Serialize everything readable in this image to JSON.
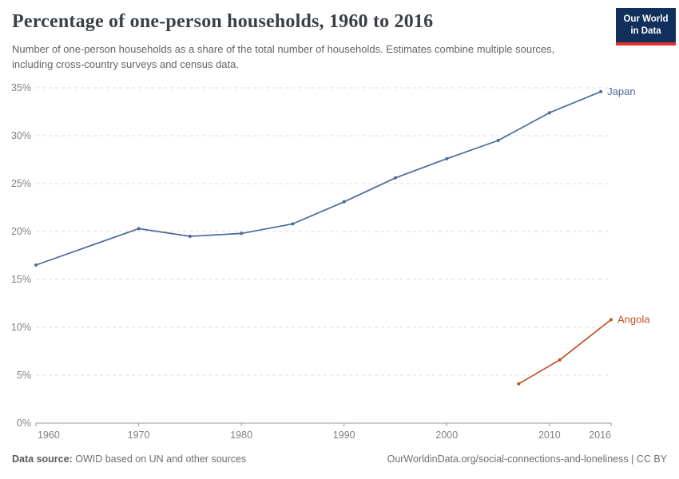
{
  "header": {
    "title": "Percentage of one-person households, 1960 to 2016",
    "subtitle": "Number of one-person households as a share of the total number of households. Estimates combine multiple sources, including cross-country surveys and census data.",
    "logo": {
      "line1": "Our World",
      "line2": "in Data",
      "bg_color": "#12305e",
      "accent_color": "#e0352f"
    }
  },
  "chart_data": {
    "type": "line",
    "title": "Percentage of one-person households, 1960 to 2016",
    "xlabel": "",
    "ylabel": "",
    "xlim": [
      1960,
      2016
    ],
    "ylim": [
      0,
      35
    ],
    "xticks": [
      1960,
      1970,
      1980,
      1990,
      2000,
      2010,
      2016
    ],
    "yticks": [
      0,
      5,
      10,
      15,
      20,
      25,
      30,
      35
    ],
    "ytick_format": "{}%",
    "grid": "horizontal-dashed",
    "legend_position": "end-of-line-labels",
    "series": [
      {
        "name": "Japan",
        "color": "#4c6a9c",
        "points": [
          [
            1960,
            16.5
          ],
          [
            1970,
            20.3
          ],
          [
            1975,
            19.5
          ],
          [
            1980,
            19.8
          ],
          [
            1985,
            20.8
          ],
          [
            1990,
            23.1
          ],
          [
            1995,
            25.6
          ],
          [
            2000,
            27.6
          ],
          [
            2005,
            29.5
          ],
          [
            2010,
            32.4
          ],
          [
            2015,
            34.6
          ]
        ]
      },
      {
        "name": "Angola",
        "color": "#c05026",
        "points": [
          [
            2007,
            4.1
          ],
          [
            2011,
            6.6
          ],
          [
            2016,
            10.8
          ]
        ]
      }
    ]
  },
  "footer": {
    "source_label": "Data source:",
    "source_text": "OWID based on UN and other sources",
    "credit": "OurWorldinData.org/social-connections-and-loneliness | CC BY"
  }
}
